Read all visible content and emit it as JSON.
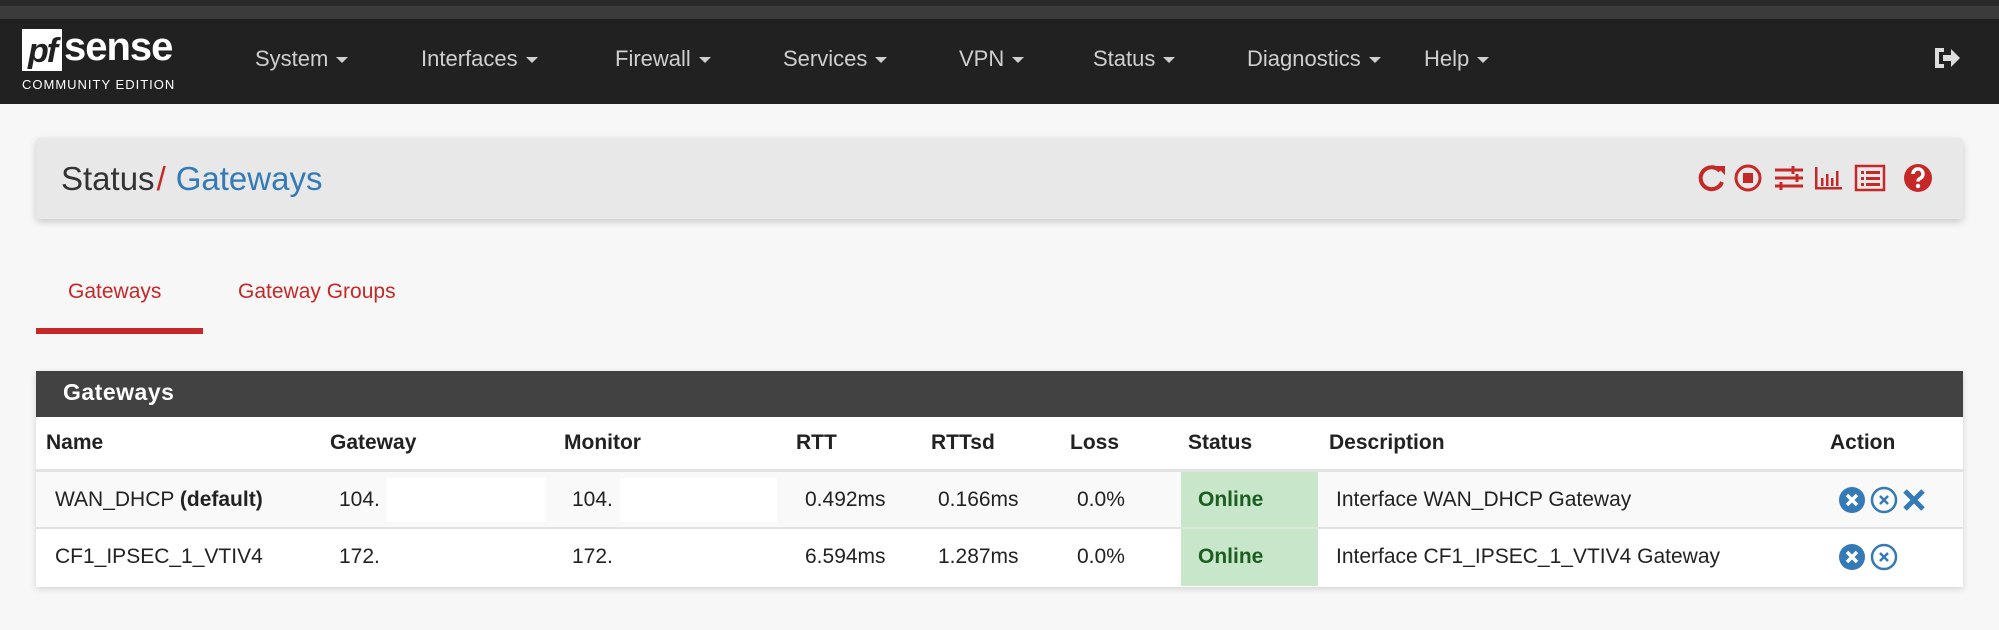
{
  "brand": {
    "logo_mark": "pf",
    "logo_word": "sense",
    "edition": "COMMUNITY EDITION"
  },
  "nav": {
    "items": [
      "System",
      "Interfaces",
      "Firewall",
      "Services",
      "VPN",
      "Status",
      "Diagnostics",
      "Help"
    ],
    "logout_icon": "sign-out-icon"
  },
  "breadcrumb": {
    "parent": "Status",
    "separator": "/",
    "current": "Gateways"
  },
  "toolbar": {
    "icons": [
      "refresh-icon",
      "stop-circle-icon",
      "sliders-icon",
      "bar-chart-icon",
      "list-icon",
      "help-icon"
    ]
  },
  "tabs": [
    {
      "label": "Gateways",
      "active": true
    },
    {
      "label": "Gateway Groups",
      "active": false
    }
  ],
  "panel": {
    "title": "Gateways",
    "columns": [
      "Name",
      "Gateway",
      "Monitor",
      "RTT",
      "RTTsd",
      "Loss",
      "Status",
      "Description",
      "Action"
    ],
    "rows": [
      {
        "name": "WAN_DHCP",
        "name_suffix": "(default)",
        "gateway": "104.",
        "monitor": "104.",
        "rtt": "0.492ms",
        "rttsd": "0.166ms",
        "loss": "0.0%",
        "status": "Online",
        "description": "Interface WAN_DHCP Gateway",
        "actions": [
          "mark-down-icon",
          "disable-icon",
          "kill-states-icon"
        ]
      },
      {
        "name": "CF1_IPSEC_1_VTIV4",
        "name_suffix": "",
        "gateway": "172.",
        "monitor": "172.",
        "rtt": "6.594ms",
        "rttsd": "1.287ms",
        "loss": "0.0%",
        "status": "Online",
        "description": "Interface CF1_IPSEC_1_VTIV4 Gateway",
        "actions": [
          "mark-down-icon",
          "disable-icon"
        ]
      }
    ]
  },
  "colors": {
    "navbar": "#212121",
    "accent_red": "#c62828",
    "link_blue": "#337ab7",
    "panel_header": "#424242",
    "online_bg": "#c8e6c9",
    "online_text": "#1b5e20"
  }
}
